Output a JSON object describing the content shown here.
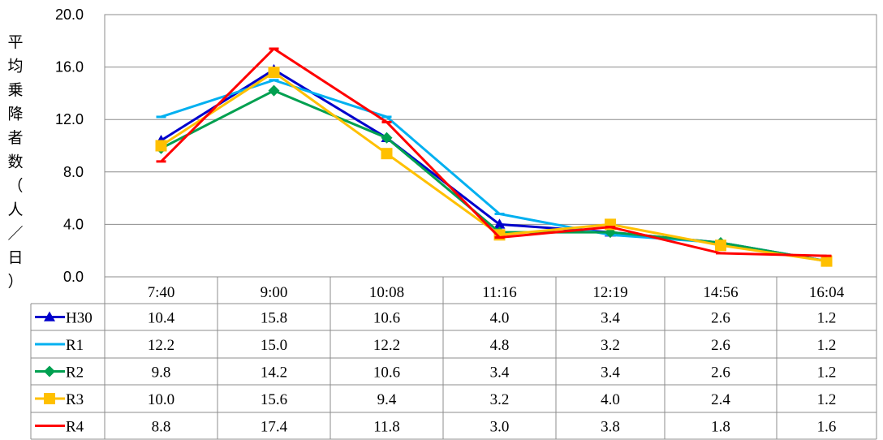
{
  "chart_data": {
    "type": "line",
    "title": "",
    "xlabel": "",
    "ylabel": "平均乗降者数（人／日）",
    "ylabel_chars": [
      "平",
      "均",
      "乗",
      "降",
      "者",
      "数",
      "（",
      "人",
      "／",
      "日",
      "）"
    ],
    "ylim": [
      0,
      20
    ],
    "yticks": [
      "0.0",
      "4.0",
      "8.0",
      "12.0",
      "16.0",
      "20.0"
    ],
    "grid": "horizontal",
    "legend": "data-table-left",
    "categories": [
      "7:40",
      "9:00",
      "10:08",
      "11:16",
      "12:19",
      "14:56",
      "16:04"
    ],
    "series": [
      {
        "name": "H30",
        "color": "#0000CC",
        "marker": "triangle",
        "values": [
          10.4,
          15.8,
          10.6,
          4.0,
          3.4,
          2.6,
          1.2
        ],
        "labels": [
          "10.4",
          "15.8",
          "10.6",
          "4.0",
          "3.4",
          "2.6",
          "1.2"
        ]
      },
      {
        "name": "R1",
        "color": "#00B0F0",
        "marker": "dash",
        "values": [
          12.2,
          15.0,
          12.2,
          4.8,
          3.2,
          2.6,
          1.2
        ],
        "labels": [
          "12.2",
          "15.0",
          "12.2",
          "4.8",
          "3.2",
          "2.6",
          "1.2"
        ]
      },
      {
        "name": "R2",
        "color": "#00A050",
        "marker": "diamond",
        "values": [
          9.8,
          14.2,
          10.6,
          3.4,
          3.4,
          2.6,
          1.2
        ],
        "labels": [
          "9.8",
          "14.2",
          "10.6",
          "3.4",
          "3.4",
          "2.6",
          "1.2"
        ]
      },
      {
        "name": "R3",
        "color": "#FFC000",
        "marker": "square",
        "values": [
          10.0,
          15.6,
          9.4,
          3.2,
          4.0,
          2.4,
          1.2
        ],
        "labels": [
          "10.0",
          "15.6",
          "9.4",
          "3.2",
          "4.0",
          "2.4",
          "1.2"
        ]
      },
      {
        "name": "R4",
        "color": "#FF0000",
        "marker": "dash",
        "values": [
          8.8,
          17.4,
          11.8,
          3.0,
          3.8,
          1.8,
          1.6
        ],
        "labels": [
          "8.8",
          "17.4",
          "11.8",
          "3.0",
          "3.8",
          "1.8",
          "1.6"
        ]
      }
    ]
  }
}
